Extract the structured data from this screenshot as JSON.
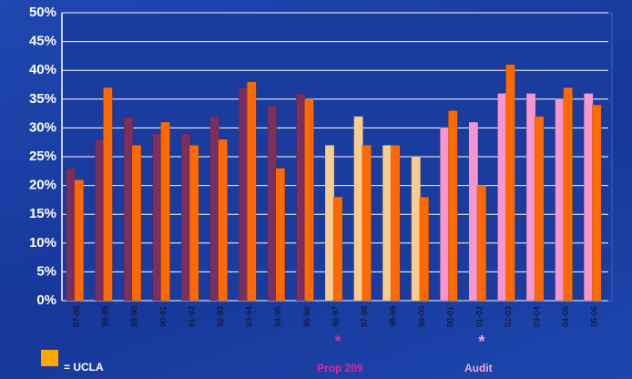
{
  "chart_data": {
    "type": "bar",
    "categories": [
      "87-88",
      "88-89",
      "89-90",
      "90-91",
      "91-92",
      "92-93",
      "93-94",
      "94-95",
      "95-96",
      "96-97",
      "97-98",
      "98-99",
      "99-00",
      "00-01",
      "01-02",
      "02-03",
      "03-04",
      "04-05",
      "05-06"
    ],
    "series": [
      {
        "colors": [
          "#7b2f5e",
          "#7b2f5e",
          "#7b2f5e",
          "#7b2f5e",
          "#7b2f5e",
          "#7b2f5e",
          "#7b2f5e",
          "#7b2f5e",
          "#7b2f5e",
          "#f9cd8f",
          "#f9cd8f",
          "#f9cd8f",
          "#f9cd8f",
          "#f795cf",
          "#f795cf",
          "#f795cf",
          "#f795cf",
          "#f795cf",
          "#f795cf"
        ],
        "values": [
          23,
          28,
          32,
          29,
          29,
          32,
          37,
          34,
          36,
          27,
          32,
          27,
          25,
          30,
          31,
          36,
          36,
          35,
          36
        ]
      },
      {
        "name": "= UCLA",
        "color": "#ff6a00",
        "legend_color": "#ffa500",
        "values": [
          21,
          37,
          27,
          31,
          27,
          28,
          38,
          23,
          35,
          18,
          27,
          27,
          18,
          33,
          20,
          41,
          32,
          37,
          34
        ]
      }
    ],
    "ylim": [
      0,
      50
    ],
    "yticks": [
      {
        "value": 0,
        "label": "0%"
      },
      {
        "value": 5,
        "label": "5%"
      },
      {
        "value": 10,
        "label": "10%"
      },
      {
        "value": 15,
        "label": "15%"
      },
      {
        "value": 20,
        "label": "20%"
      },
      {
        "value": 25,
        "label": "25%"
      },
      {
        "value": 30,
        "label": "30%"
      },
      {
        "value": 35,
        "label": "35%"
      },
      {
        "value": 40,
        "label": "40%"
      },
      {
        "value": 45,
        "label": "45%"
      },
      {
        "value": 50,
        "label": "50%"
      }
    ],
    "grid": true,
    "annotations": [
      {
        "marker": "*",
        "text": "Prop 209",
        "color": "#e3259a"
      },
      {
        "marker": "*",
        "text": "Audit",
        "color": "#f2a6e4"
      }
    ]
  }
}
